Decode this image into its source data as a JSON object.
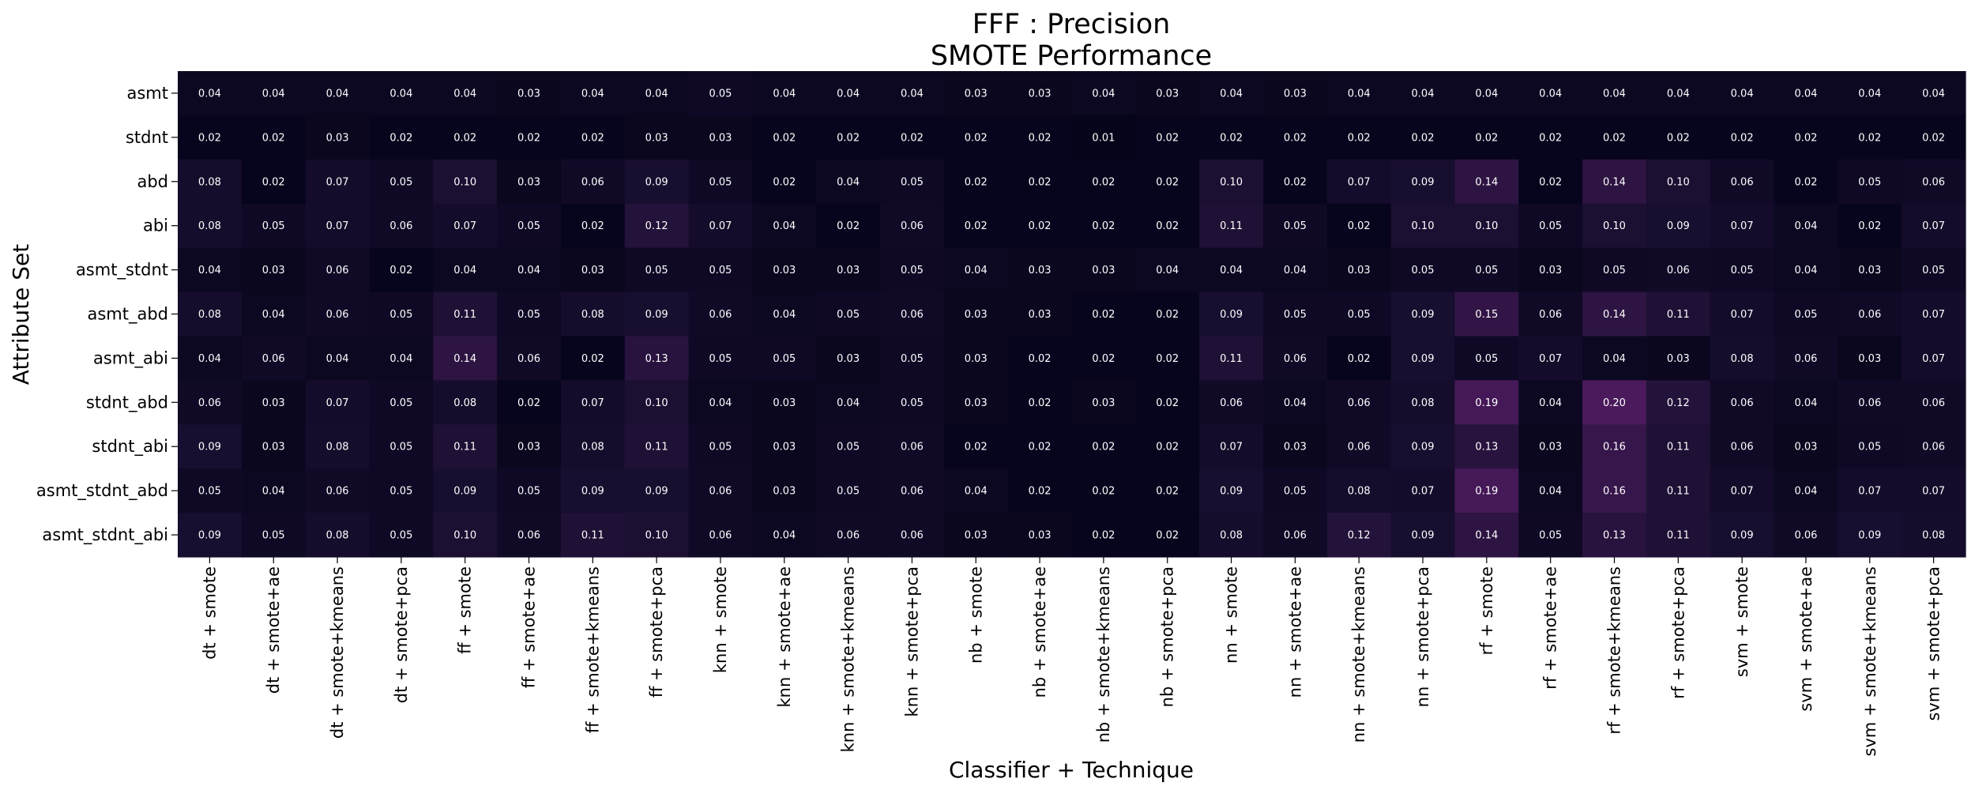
{
  "chart_data": {
    "type": "heatmap",
    "title": "FFF : Precision",
    "subtitle": "SMOTE Performance",
    "xlabel": "Classifier + Technique",
    "ylabel": "Attribute Set",
    "x_categories": [
      "dt + smote",
      "dt + smote+ae",
      "dt + smote+kmeans",
      "dt + smote+pca",
      "ff + smote",
      "ff + smote+ae",
      "ff + smote+kmeans",
      "ff + smote+pca",
      "knn + smote",
      "knn + smote+ae",
      "knn + smote+kmeans",
      "knn + smote+pca",
      "nb + smote",
      "nb + smote+ae",
      "nb + smote+kmeans",
      "nb + smote+pca",
      "nn + smote",
      "nn + smote+ae",
      "nn + smote+kmeans",
      "nn + smote+pca",
      "rf + smote",
      "rf + smote+ae",
      "rf + smote+kmeans",
      "rf + smote+pca",
      "svm + smote",
      "svm + smote+ae",
      "svm + smote+kmeans",
      "svm + smote+pca"
    ],
    "y_categories": [
      "asmt",
      "stdnt",
      "abd",
      "abi",
      "asmt_stdnt",
      "asmt_abd",
      "asmt_abi",
      "stdnt_abd",
      "stdnt_abi",
      "asmt_stdnt_abd",
      "asmt_stdnt_abi"
    ],
    "values": [
      [
        0.04,
        0.04,
        0.04,
        0.04,
        0.04,
        0.03,
        0.04,
        0.04,
        0.05,
        0.04,
        0.04,
        0.04,
        0.03,
        0.03,
        0.04,
        0.03,
        0.04,
        0.03,
        0.04,
        0.04,
        0.04,
        0.04,
        0.04,
        0.04,
        0.04,
        0.04,
        0.04,
        0.04
      ],
      [
        0.02,
        0.02,
        0.03,
        0.02,
        0.02,
        0.02,
        0.02,
        0.03,
        0.03,
        0.02,
        0.02,
        0.02,
        0.02,
        0.02,
        0.01,
        0.02,
        0.02,
        0.02,
        0.02,
        0.02,
        0.02,
        0.02,
        0.02,
        0.02,
        0.02,
        0.02,
        0.02,
        0.02
      ],
      [
        0.08,
        0.02,
        0.07,
        0.05,
        0.1,
        0.03,
        0.06,
        0.09,
        0.05,
        0.02,
        0.04,
        0.05,
        0.02,
        0.02,
        0.02,
        0.02,
        0.1,
        0.02,
        0.07,
        0.09,
        0.14,
        0.02,
        0.14,
        0.1,
        0.06,
        0.02,
        0.05,
        0.06
      ],
      [
        0.08,
        0.05,
        0.07,
        0.06,
        0.07,
        0.05,
        0.02,
        0.12,
        0.07,
        0.04,
        0.02,
        0.06,
        0.02,
        0.02,
        0.02,
        0.02,
        0.11,
        0.05,
        0.02,
        0.1,
        0.1,
        0.05,
        0.1,
        0.09,
        0.07,
        0.04,
        0.02,
        0.07
      ],
      [
        0.04,
        0.03,
        0.06,
        0.02,
        0.04,
        0.04,
        0.03,
        0.05,
        0.05,
        0.03,
        0.03,
        0.05,
        0.04,
        0.03,
        0.03,
        0.04,
        0.04,
        0.04,
        0.03,
        0.05,
        0.05,
        0.03,
        0.05,
        0.06,
        0.05,
        0.04,
        0.03,
        0.05
      ],
      [
        0.08,
        0.04,
        0.06,
        0.05,
        0.11,
        0.05,
        0.08,
        0.09,
        0.06,
        0.04,
        0.05,
        0.06,
        0.03,
        0.03,
        0.02,
        0.02,
        0.09,
        0.05,
        0.05,
        0.09,
        0.15,
        0.06,
        0.14,
        0.11,
        0.07,
        0.05,
        0.06,
        0.07
      ],
      [
        0.04,
        0.06,
        0.04,
        0.04,
        0.14,
        0.06,
        0.02,
        0.13,
        0.05,
        0.05,
        0.03,
        0.05,
        0.03,
        0.02,
        0.02,
        0.02,
        0.11,
        0.06,
        0.02,
        0.09,
        0.05,
        0.07,
        0.04,
        0.03,
        0.08,
        0.06,
        0.03,
        0.07
      ],
      [
        0.06,
        0.03,
        0.07,
        0.05,
        0.08,
        0.02,
        0.07,
        0.1,
        0.04,
        0.03,
        0.04,
        0.05,
        0.03,
        0.02,
        0.03,
        0.02,
        0.06,
        0.04,
        0.06,
        0.08,
        0.19,
        0.04,
        0.2,
        0.12,
        0.06,
        0.04,
        0.06,
        0.06
      ],
      [
        0.09,
        0.03,
        0.08,
        0.05,
        0.11,
        0.03,
        0.08,
        0.11,
        0.05,
        0.03,
        0.05,
        0.06,
        0.02,
        0.02,
        0.02,
        0.02,
        0.07,
        0.03,
        0.06,
        0.09,
        0.13,
        0.03,
        0.16,
        0.11,
        0.06,
        0.03,
        0.05,
        0.06
      ],
      [
        0.05,
        0.04,
        0.06,
        0.05,
        0.09,
        0.05,
        0.09,
        0.09,
        0.06,
        0.03,
        0.05,
        0.06,
        0.04,
        0.02,
        0.02,
        0.02,
        0.09,
        0.05,
        0.08,
        0.07,
        0.19,
        0.04,
        0.16,
        0.11,
        0.07,
        0.04,
        0.07,
        0.07
      ],
      [
        0.09,
        0.05,
        0.08,
        0.05,
        0.1,
        0.06,
        0.11,
        0.1,
        0.06,
        0.04,
        0.06,
        0.06,
        0.03,
        0.03,
        0.02,
        0.02,
        0.08,
        0.06,
        0.12,
        0.09,
        0.14,
        0.05,
        0.13,
        0.11,
        0.09,
        0.06,
        0.09,
        0.08
      ]
    ],
    "value_format": "2 decimals",
    "colormap": "dark magma (black to purple)",
    "colorbar": false,
    "grid": false,
    "colors": {
      "low": "#05041a",
      "mid": "#1c1033",
      "high": "#4a1a5c",
      "cell_text": "#ffffff"
    }
  }
}
